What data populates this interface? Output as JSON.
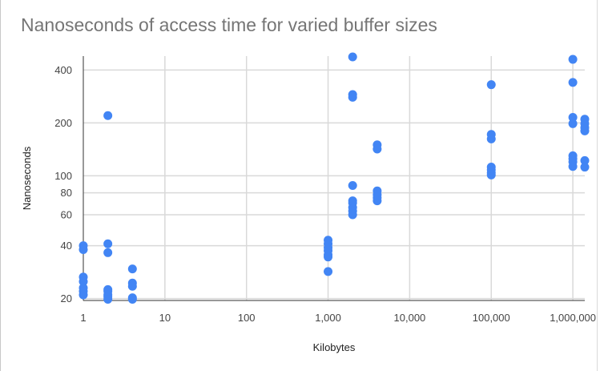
{
  "chart_data": {
    "type": "scatter",
    "title": "Nanoseconds of access time for varied buffer sizes",
    "xlabel": "Kilobytes",
    "ylabel": "Nanoseconds",
    "x_scale": "log",
    "y_scale": "log",
    "xlim": [
      1,
      1400000
    ],
    "ylim": [
      19.5,
      480
    ],
    "x_ticks": [
      1,
      10,
      100,
      1000,
      10000,
      100000,
      1000000
    ],
    "x_tick_labels": [
      "1",
      "10",
      "100",
      "1,000",
      "10,000",
      "100,000",
      "1,000,000"
    ],
    "y_ticks": [
      20,
      40,
      60,
      80,
      100,
      200,
      400
    ],
    "y_tick_labels": [
      "20",
      "40",
      "60",
      "80",
      "100",
      "200",
      "400"
    ],
    "grid": true,
    "point_color": "#4285f4",
    "points": [
      {
        "x": 1,
        "y": 40
      },
      {
        "x": 1,
        "y": 38
      },
      {
        "x": 1,
        "y": 26.5
      },
      {
        "x": 1,
        "y": 25
      },
      {
        "x": 1,
        "y": 23
      },
      {
        "x": 1,
        "y": 22
      },
      {
        "x": 1,
        "y": 21
      },
      {
        "x": 2,
        "y": 220
      },
      {
        "x": 2,
        "y": 41
      },
      {
        "x": 2,
        "y": 36.5
      },
      {
        "x": 2,
        "y": 22.5
      },
      {
        "x": 2,
        "y": 22
      },
      {
        "x": 2,
        "y": 21
      },
      {
        "x": 2,
        "y": 20.5
      },
      {
        "x": 2,
        "y": 19.8
      },
      {
        "x": 4,
        "y": 29.5
      },
      {
        "x": 4,
        "y": 24.5
      },
      {
        "x": 4,
        "y": 23.5
      },
      {
        "x": 4,
        "y": 20.2
      },
      {
        "x": 4,
        "y": 19.8
      },
      {
        "x": 1000,
        "y": 43
      },
      {
        "x": 1000,
        "y": 41
      },
      {
        "x": 1000,
        "y": 39
      },
      {
        "x": 1000,
        "y": 37.5
      },
      {
        "x": 1000,
        "y": 35.5
      },
      {
        "x": 1000,
        "y": 34.5
      },
      {
        "x": 1000,
        "y": 28.5
      },
      {
        "x": 2000,
        "y": 475
      },
      {
        "x": 2000,
        "y": 290
      },
      {
        "x": 2000,
        "y": 280
      },
      {
        "x": 2000,
        "y": 88
      },
      {
        "x": 2000,
        "y": 72
      },
      {
        "x": 2000,
        "y": 70
      },
      {
        "x": 2000,
        "y": 66
      },
      {
        "x": 2000,
        "y": 63
      },
      {
        "x": 2000,
        "y": 60
      },
      {
        "x": 4000,
        "y": 150
      },
      {
        "x": 4000,
        "y": 142
      },
      {
        "x": 4000,
        "y": 82
      },
      {
        "x": 4000,
        "y": 78
      },
      {
        "x": 4000,
        "y": 75
      },
      {
        "x": 4000,
        "y": 72
      },
      {
        "x": 100000,
        "y": 330
      },
      {
        "x": 100000,
        "y": 172
      },
      {
        "x": 100000,
        "y": 162
      },
      {
        "x": 100000,
        "y": 112
      },
      {
        "x": 100000,
        "y": 108
      },
      {
        "x": 100000,
        "y": 104
      },
      {
        "x": 100000,
        "y": 101
      },
      {
        "x": 1000000,
        "y": 460
      },
      {
        "x": 1000000,
        "y": 340
      },
      {
        "x": 1000000,
        "y": 215
      },
      {
        "x": 1000000,
        "y": 198
      },
      {
        "x": 1000000,
        "y": 130
      },
      {
        "x": 1000000,
        "y": 125
      },
      {
        "x": 1000000,
        "y": 120
      },
      {
        "x": 1000000,
        "y": 113
      },
      {
        "x": 1400000,
        "y": 210
      },
      {
        "x": 1400000,
        "y": 198
      },
      {
        "x": 1400000,
        "y": 188
      },
      {
        "x": 1400000,
        "y": 180
      },
      {
        "x": 1400000,
        "y": 122
      },
      {
        "x": 1400000,
        "y": 112
      }
    ]
  }
}
